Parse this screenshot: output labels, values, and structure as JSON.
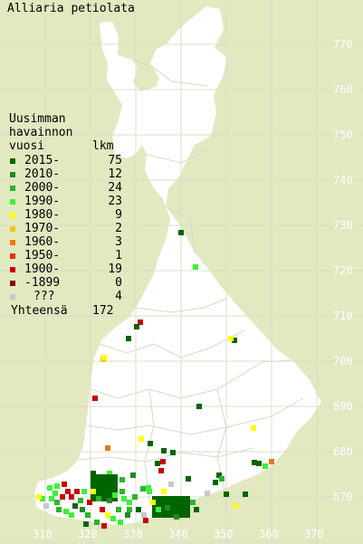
{
  "title": "Alliaria petiolata",
  "legend": {
    "heading": [
      "Uusimman",
      "havainnon",
      "vuosi"
    ],
    "count_header": "lkm",
    "rows": [
      {
        "label": "2015-",
        "count": "75",
        "color": "#006400"
      },
      {
        "label": "2010-",
        "count": "12",
        "color": "#1e8c1e"
      },
      {
        "label": "2000-",
        "count": "24",
        "color": "#2db42d"
      },
      {
        "label": "1990-",
        "count": "23",
        "color": "#3cf03c"
      },
      {
        "label": "1980-",
        "count": "9",
        "color": "#ffff00"
      },
      {
        "label": "1970-",
        "count": "2",
        "color": "#f0c800"
      },
      {
        "label": "1960-",
        "count": "3",
        "color": "#f07800"
      },
      {
        "label": "1950-",
        "count": "1",
        "color": "#e63200"
      },
      {
        "label": "1900-",
        "count": "19",
        "color": "#c80000"
      },
      {
        "label": "-1899",
        "count": "0",
        "color": "#8c0000"
      },
      {
        "label": "???",
        "count": "4",
        "color": "#c8c8c8"
      }
    ],
    "total_label": "Yhteensä",
    "total_count": "172"
  },
  "axis": {
    "y_ticks": [
      "770",
      "760",
      "750",
      "740",
      "730",
      "720",
      "710",
      "700",
      "690",
      "680",
      "670"
    ],
    "x_ticks": [
      "310",
      "320",
      "330",
      "340",
      "350",
      "360",
      "370"
    ]
  },
  "colors": {
    "background": "#e2e8c0",
    "land": "#ffffff",
    "grid": "#dcdcc8"
  }
}
